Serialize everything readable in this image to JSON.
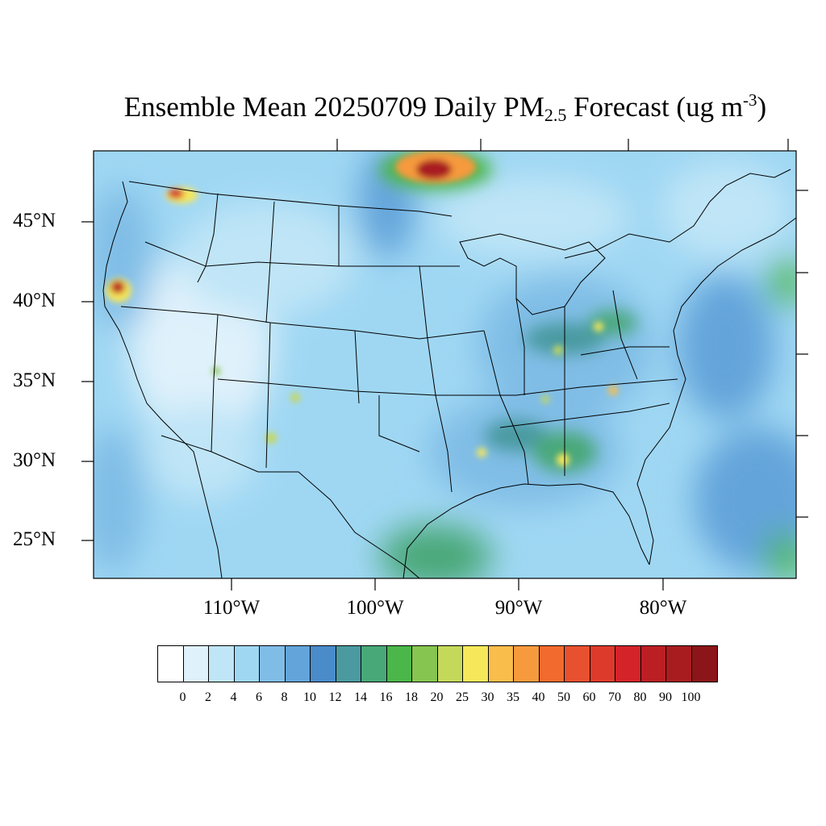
{
  "title": {
    "prefix": "Ensemble Mean 20250709 Daily PM",
    "subscript": "2.5",
    "middle": " Forecast (ug m",
    "superscript": "-3",
    "suffix": ")"
  },
  "lat_labels": [
    "45°N",
    "40°N",
    "35°N",
    "30°N",
    "25°N"
  ],
  "lon_labels": [
    "110°W",
    "100°W",
    "90°W",
    "80°W"
  ],
  "colorbar": {
    "labels": [
      "0",
      "2",
      "4",
      "6",
      "8",
      "10",
      "12",
      "14",
      "16",
      "18",
      "20",
      "25",
      "30",
      "35",
      "40",
      "50",
      "60",
      "70",
      "80",
      "90",
      "100"
    ],
    "colors": [
      "#ffffff",
      "#dff1fb",
      "#bfe5f7",
      "#9fd7f3",
      "#80bde6",
      "#63a4da",
      "#4a8bc9",
      "#4a9aa0",
      "#48a878",
      "#4bb649",
      "#86c550",
      "#c4d85a",
      "#f6e75a",
      "#f9bd4b",
      "#f69a3d",
      "#f26a2e",
      "#e85130",
      "#de3a2c",
      "#d42429",
      "#bb1f24",
      "#a81c20",
      "#8b1518"
    ]
  },
  "hotspots": [
    {
      "name": "smoke-ontario-fires",
      "peak": "100"
    },
    {
      "name": "smoke-n-idaho-fire",
      "peak": "80"
    },
    {
      "name": "smoke-n-california-fire",
      "peak": "90"
    }
  ]
}
